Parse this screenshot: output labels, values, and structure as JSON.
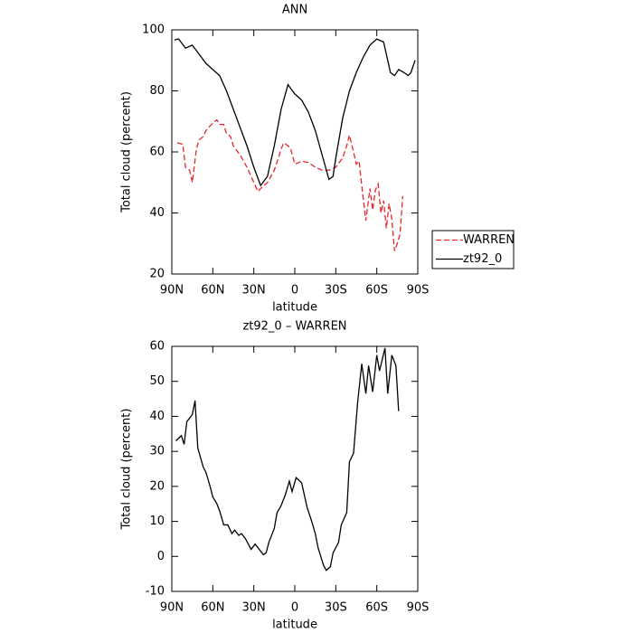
{
  "chart_data": [
    {
      "type": "line",
      "title": "ANN",
      "xlabel": "latitude",
      "ylabel": "Total cloud (percent)",
      "xlim": [
        90,
        -90
      ],
      "xticks": [
        {
          "value": 90,
          "label": "90N"
        },
        {
          "value": 60,
          "label": "60N"
        },
        {
          "value": 30,
          "label": "30N"
        },
        0,
        {
          "value": -30,
          "label": "30S"
        },
        {
          "value": -60,
          "label": "60S"
        },
        {
          "value": -90,
          "label": "90S"
        }
      ],
      "ylim": [
        20,
        100
      ],
      "yticks": [
        20,
        40,
        60,
        80,
        100
      ],
      "legend": "right",
      "series": [
        {
          "name": "WARREN",
          "color": "#e8262b",
          "line_style": "dashed",
          "x": [
            86,
            82,
            80,
            77,
            75,
            72,
            70,
            67,
            65,
            60,
            57,
            55,
            52,
            50,
            47,
            45,
            40,
            35,
            32,
            30,
            27,
            25,
            20,
            15,
            12,
            10,
            8,
            5,
            3,
            0,
            -3,
            -5,
            -10,
            -15,
            -20,
            -25,
            -30,
            -35,
            -38,
            -40,
            -43,
            -45,
            -47,
            -50,
            -52,
            -55,
            -57,
            -59,
            -61,
            -63,
            -65,
            -67,
            -69,
            -71,
            -73,
            -75,
            -77,
            -79
          ],
          "values": [
            63,
            62.5,
            55,
            54,
            50,
            61,
            64,
            65,
            67,
            69.5,
            70.5,
            69,
            69,
            66,
            65,
            62,
            59,
            55,
            52,
            50,
            47,
            48,
            50,
            54,
            58,
            61,
            63,
            62,
            61,
            56,
            56.5,
            57,
            56.5,
            55,
            54,
            54,
            55,
            58,
            62,
            65.5,
            60,
            56,
            57,
            45,
            37.5,
            48,
            41,
            47.5,
            49.5,
            40,
            44,
            35,
            43,
            38,
            27.5,
            30,
            33,
            45.5
          ]
        },
        {
          "name": "zt92_0",
          "color": "#000000",
          "line_style": "solid",
          "x": [
            88,
            85,
            80,
            75,
            70,
            65,
            60,
            55,
            50,
            45,
            40,
            35,
            30,
            25,
            20,
            15,
            10,
            5,
            0,
            -5,
            -10,
            -15,
            -20,
            -25,
            -28,
            -30,
            -35,
            -40,
            -45,
            -50,
            -55,
            -60,
            -65,
            -70,
            -73,
            -76,
            -80,
            -83,
            -85,
            -88
          ],
          "values": [
            96.7,
            97,
            94,
            95,
            92,
            89,
            87,
            85,
            80,
            74,
            68,
            62,
            55,
            49,
            52,
            62,
            74,
            82,
            79,
            77,
            73,
            67,
            59,
            51,
            52,
            58,
            71,
            80,
            86,
            91,
            95,
            97,
            96,
            86,
            85,
            87,
            86,
            85,
            86,
            90
          ]
        }
      ]
    },
    {
      "type": "line",
      "title": "zt92_0 – WARREN",
      "xlabel": "latitude",
      "ylabel": "Total cloud (percent)",
      "xlim": [
        90,
        -90
      ],
      "xticks": [
        {
          "value": 90,
          "label": "90N"
        },
        {
          "value": 60,
          "label": "60N"
        },
        {
          "value": 30,
          "label": "30N"
        },
        0,
        {
          "value": -30,
          "label": "30S"
        },
        {
          "value": -60,
          "label": "60S"
        },
        {
          "value": -90,
          "label": "90S"
        }
      ],
      "ylim": [
        -10,
        60
      ],
      "yticks": [
        -10,
        0,
        10,
        20,
        30,
        40,
        50,
        60
      ],
      "color": "#000000",
      "x": [
        87,
        83,
        81,
        79,
        75,
        73,
        71,
        67,
        65,
        62,
        60,
        57,
        55,
        52,
        49,
        46,
        44,
        41,
        39,
        36,
        32,
        29,
        26,
        23,
        21,
        19,
        15,
        13,
        10,
        7,
        4,
        2,
        -1,
        -5,
        -7,
        -9,
        -12,
        -15,
        -17,
        -21,
        -23,
        -26,
        -28,
        -32,
        -34,
        -38,
        -40,
        -43,
        -46,
        -49,
        -52,
        -54,
        -57,
        -60,
        -62,
        -66,
        -68,
        -71,
        -74,
        -76
      ],
      "values": [
        33,
        34.5,
        32,
        38.5,
        40.5,
        44.5,
        31,
        25.5,
        24,
        20,
        17,
        15,
        13,
        9,
        9,
        6.5,
        7.5,
        6,
        6.5,
        5,
        2,
        3.5,
        2,
        0.5,
        1,
        4,
        8,
        12.5,
        14.5,
        17.5,
        21.5,
        18.5,
        22.5,
        21,
        17.5,
        14,
        10.5,
        6.5,
        2.5,
        -2.5,
        -4,
        -3,
        1,
        4,
        9,
        12.5,
        27,
        29.5,
        44,
        55,
        46.5,
        54.5,
        47,
        57.5,
        53,
        59.5,
        46.5,
        57.5,
        54.5,
        41.5
      ]
    }
  ]
}
